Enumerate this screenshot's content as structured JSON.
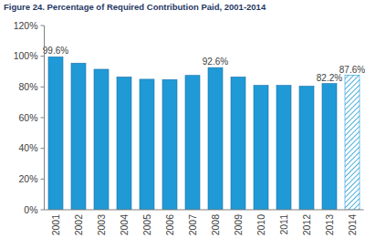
{
  "chart_data": {
    "type": "bar",
    "title": "Figure 24. Percentage of Required Contribution Paid, 2001-2014",
    "categories": [
      "2001",
      "2002",
      "2003",
      "2004",
      "2005",
      "2006",
      "2007",
      "2008",
      "2009",
      "2010",
      "2011",
      "2012",
      "2013",
      "2014"
    ],
    "series": [
      {
        "color": "#1f9ad6",
        "values": [
          99.6,
          95.5,
          91.5,
          86.5,
          85,
          84.8,
          87.5,
          92.6,
          86.5,
          81,
          81,
          80.5,
          82.2,
          null
        ],
        "value_labels": [
          "99.6%",
          null,
          null,
          null,
          null,
          null,
          null,
          "92.6%",
          null,
          null,
          null,
          null,
          "82.2%",
          null
        ]
      },
      {
        "color": "#1f9ad6",
        "line_style": "hatched",
        "values": [
          null,
          null,
          null,
          null,
          null,
          null,
          null,
          null,
          null,
          null,
          null,
          null,
          null,
          87.6
        ],
        "value_labels": [
          null,
          null,
          null,
          null,
          null,
          null,
          null,
          null,
          null,
          null,
          null,
          null,
          null,
          "87.6%"
        ]
      }
    ],
    "data_labels": true,
    "ylim": [
      0,
      120
    ],
    "yticks": [
      {
        "value": 0,
        "label": "0%"
      },
      {
        "value": 20,
        "label": "20%"
      },
      {
        "value": 40,
        "label": "40%"
      },
      {
        "value": 60,
        "label": "60%"
      },
      {
        "value": 80,
        "label": "80%"
      },
      {
        "value": 100,
        "label": "100%"
      },
      {
        "value": 120,
        "label": "120%"
      }
    ],
    "grid": false
  }
}
